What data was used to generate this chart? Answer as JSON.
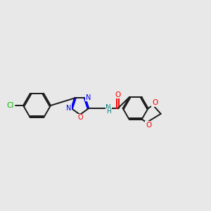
{
  "background_color": "#e8e8e8",
  "bond_color": "#1a1a1a",
  "N_color": "#0000ff",
  "O_color": "#ff0000",
  "Cl_color": "#00bb00",
  "NH_color": "#008080",
  "figsize": [
    3.0,
    3.0
  ],
  "dpi": 100,
  "xlim": [
    0,
    12
  ],
  "ylim": [
    2,
    8
  ]
}
